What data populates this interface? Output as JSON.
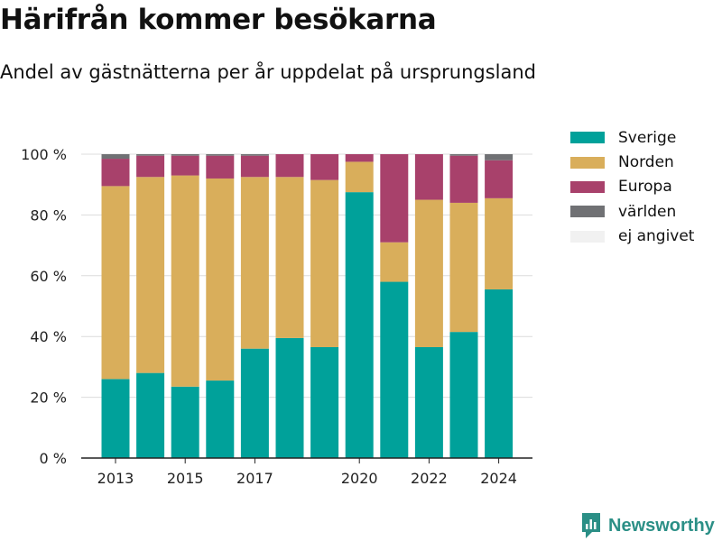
{
  "chart_data": {
    "type": "bar",
    "stacked": true,
    "title": "Härifrån kommer besökarna",
    "subtitle": "Andel av gästnätterna per år uppdelat på ursprungsland",
    "xlabel": "",
    "ylabel": "",
    "ylim": [
      0,
      100
    ],
    "grid": true,
    "legend_position": "right",
    "categories": [
      "2013",
      "2014",
      "2015",
      "2016",
      "2017",
      "2018",
      "2019",
      "2020",
      "2021",
      "2022",
      "2023",
      "2024"
    ],
    "x_tick_labels": [
      "2013",
      "2015",
      "2017",
      "2020",
      "2022",
      "2024"
    ],
    "y_ticks": [
      0,
      20,
      40,
      60,
      80,
      100
    ],
    "y_tick_labels": [
      "0 %",
      "20 %",
      "40 %",
      "60 %",
      "80 %",
      "100 %"
    ],
    "series": [
      {
        "name": "Sverige",
        "color": "#00a19a",
        "values": [
          26,
          28,
          23.5,
          25.5,
          36,
          39.5,
          36.5,
          87.5,
          58,
          36.5,
          41.5,
          55.5
        ]
      },
      {
        "name": "Norden",
        "color": "#d9ae5b",
        "values": [
          63.5,
          64.5,
          69.5,
          66.5,
          56.5,
          53,
          55,
          10,
          13,
          48.5,
          42.5,
          30
        ]
      },
      {
        "name": "Europa",
        "color": "#a8416b",
        "values": [
          9,
          7,
          6.5,
          7.5,
          7,
          7.5,
          8.5,
          2.5,
          29,
          15,
          15.5,
          12.5
        ]
      },
      {
        "name": "världen",
        "color": "#707174",
        "values": [
          1.5,
          0.5,
          0.5,
          0.5,
          0.5,
          0,
          0,
          0,
          0,
          0,
          0.5,
          2
        ]
      },
      {
        "name": "ej angivet",
        "color": "#f1f1f1",
        "values": [
          0,
          0,
          0,
          0,
          0,
          0,
          0,
          0,
          0,
          0,
          0,
          0
        ]
      }
    ]
  },
  "brand": {
    "name": "Newsworthy",
    "color": "#2b8f86"
  }
}
